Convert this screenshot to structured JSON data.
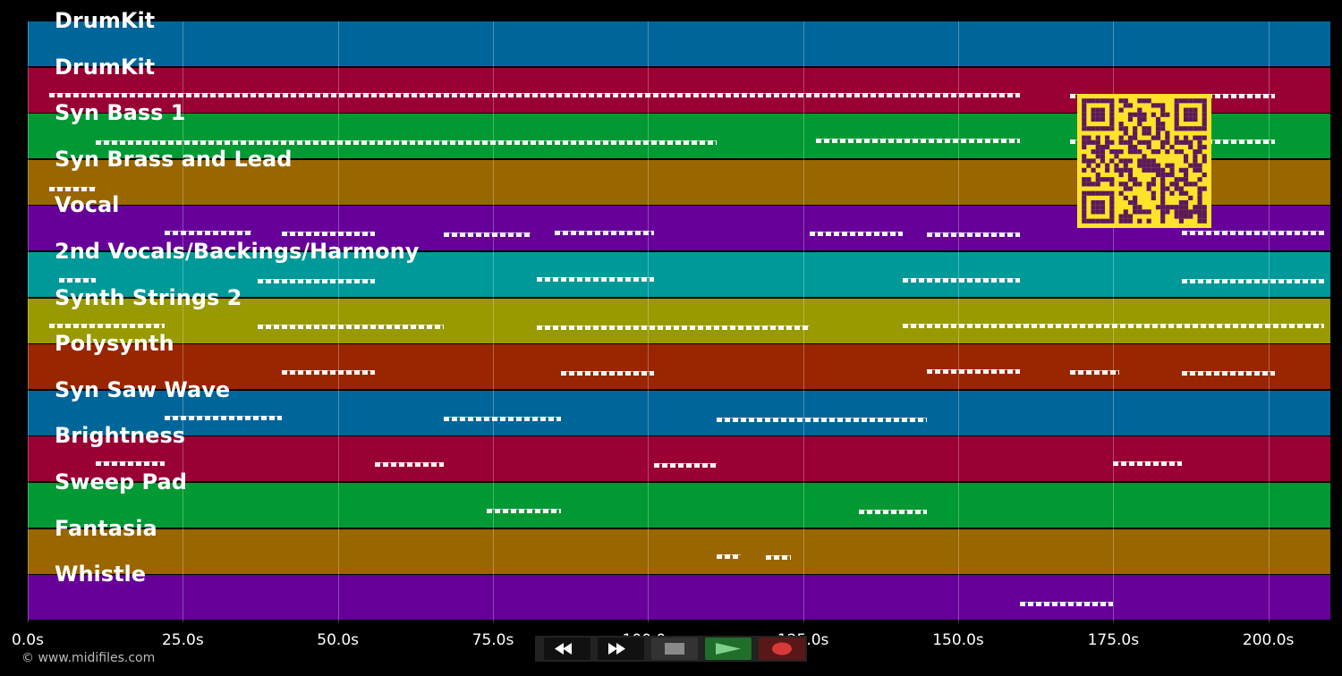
{
  "tracks": [
    {
      "name": "DrumKit",
      "color": "#006699"
    },
    {
      "name": "DrumKit",
      "color": "#990033"
    },
    {
      "name": "Syn Bass 1",
      "color": "#009933"
    },
    {
      "name": "Syn Brass and Lead",
      "color": "#996600"
    },
    {
      "name": "Vocal",
      "color": "#660099"
    },
    {
      "name": "2nd Vocals/Backings/Harmony",
      "color": "#009999"
    },
    {
      "name": "Synth Strings 2",
      "color": "#999900"
    },
    {
      "name": "Polysynth",
      "color": "#992600"
    },
    {
      "name": "Syn Saw Wave",
      "color": "#006699"
    },
    {
      "name": "Brightness",
      "color": "#990033"
    },
    {
      "name": "Sweep Pad",
      "color": "#009933"
    },
    {
      "name": "Fantasia",
      "color": "#996600"
    },
    {
      "name": "Whistle",
      "color": "#660099"
    }
  ],
  "time_axis": {
    "unit": "s",
    "max_seconds": 210,
    "ticks": [
      "0.0s",
      "25.0s",
      "50.0s",
      "75.0s",
      "100.0s",
      "125.0s",
      "150.0s",
      "175.0s",
      "200.0s"
    ],
    "tick_values": [
      0,
      25,
      50,
      75,
      100,
      125,
      150,
      175,
      200
    ]
  },
  "copyright": "© www.midifiles.com",
  "transport": {
    "buttons": [
      {
        "name": "rewind-button",
        "icon": "rewind-icon",
        "color": "#111111"
      },
      {
        "name": "fast-forward-button",
        "icon": "fast-forward-icon",
        "color": "#111111"
      },
      {
        "name": "stop-button",
        "icon": "stop-icon",
        "color": "#333333"
      },
      {
        "name": "play-button",
        "icon": "play-icon",
        "color": "#1f6f2a"
      },
      {
        "name": "record-button",
        "icon": "record-icon",
        "color": "#5a1717"
      }
    ]
  },
  "qr_code": {
    "icon": "qr-code-icon",
    "background": "#ffe22a",
    "foreground": "#5a1a5a"
  },
  "note_segments": [
    {
      "track": 1,
      "start": 3.5,
      "end": 160
    },
    {
      "track": 1,
      "start": 168,
      "end": 201
    },
    {
      "track": 2,
      "start": 11,
      "end": 111
    },
    {
      "track": 2,
      "start": 127,
      "end": 160
    },
    {
      "track": 2,
      "start": 168,
      "end": 201
    },
    {
      "track": 3,
      "start": 3.5,
      "end": 11
    },
    {
      "track": 4,
      "start": 22,
      "end": 36
    },
    {
      "track": 4,
      "start": 41,
      "end": 56
    },
    {
      "track": 4,
      "start": 67,
      "end": 81
    },
    {
      "track": 4,
      "start": 85,
      "end": 101
    },
    {
      "track": 4,
      "start": 126,
      "end": 141
    },
    {
      "track": 4,
      "start": 145,
      "end": 160
    },
    {
      "track": 4,
      "start": 186,
      "end": 209
    },
    {
      "track": 5,
      "start": 5,
      "end": 11
    },
    {
      "track": 5,
      "start": 37,
      "end": 56
    },
    {
      "track": 5,
      "start": 82,
      "end": 101
    },
    {
      "track": 5,
      "start": 141,
      "end": 160
    },
    {
      "track": 5,
      "start": 186,
      "end": 209
    },
    {
      "track": 6,
      "start": 3.5,
      "end": 22
    },
    {
      "track": 6,
      "start": 37,
      "end": 67
    },
    {
      "track": 6,
      "start": 82,
      "end": 126
    },
    {
      "track": 6,
      "start": 141,
      "end": 209
    },
    {
      "track": 7,
      "start": 41,
      "end": 56
    },
    {
      "track": 7,
      "start": 86,
      "end": 101
    },
    {
      "track": 7,
      "start": 145,
      "end": 160
    },
    {
      "track": 7,
      "start": 168,
      "end": 176
    },
    {
      "track": 7,
      "start": 186,
      "end": 201
    },
    {
      "track": 8,
      "start": 22,
      "end": 41
    },
    {
      "track": 8,
      "start": 67,
      "end": 86
    },
    {
      "track": 8,
      "start": 111,
      "end": 145
    },
    {
      "track": 9,
      "start": 11,
      "end": 22
    },
    {
      "track": 9,
      "start": 56,
      "end": 67
    },
    {
      "track": 9,
      "start": 101,
      "end": 111
    },
    {
      "track": 9,
      "start": 175,
      "end": 186
    },
    {
      "track": 10,
      "start": 74,
      "end": 86
    },
    {
      "track": 10,
      "start": 134,
      "end": 145
    },
    {
      "track": 11,
      "start": 111,
      "end": 115
    },
    {
      "track": 11,
      "start": 119,
      "end": 123
    },
    {
      "track": 12,
      "start": 160,
      "end": 175
    }
  ]
}
